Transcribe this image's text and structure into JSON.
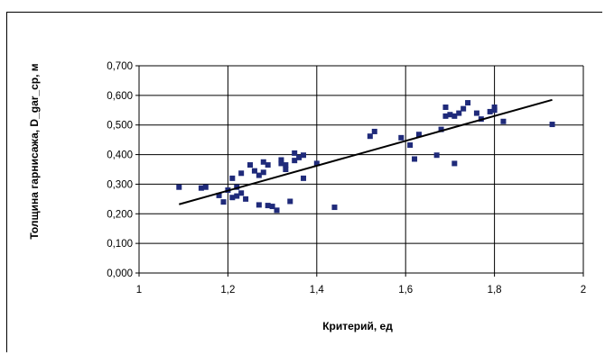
{
  "chart_data": {
    "type": "scatter",
    "xlabel": "Критерий,  ед",
    "ylabel": "Толщина гарнисажа, D_gar_ср, м",
    "xlim": [
      1,
      2
    ],
    "ylim": [
      0,
      0.7
    ],
    "x_ticks": [
      1,
      1.2,
      1.4,
      1.6,
      1.8,
      2
    ],
    "x_tick_labels": [
      "1",
      "1,2",
      "1,4",
      "1,6",
      "1,8",
      "2"
    ],
    "y_ticks": [
      0,
      0.1,
      0.2,
      0.3,
      0.4,
      0.5,
      0.6,
      0.7
    ],
    "y_tick_labels": [
      "0,000",
      "0,100",
      "0,200",
      "0,300",
      "0,400",
      "0,500",
      "0,600",
      "0,700"
    ],
    "grid": "major gridlines on both axes",
    "marker_color": "#1f2a7a",
    "trendline": {
      "type": "linear",
      "x": [
        1.09,
        1.93
      ],
      "y": [
        0.232,
        0.585
      ],
      "color": "#000000"
    },
    "points": [
      [
        1.09,
        0.29
      ],
      [
        1.14,
        0.287
      ],
      [
        1.15,
        0.29
      ],
      [
        1.18,
        0.262
      ],
      [
        1.19,
        0.24
      ],
      [
        1.2,
        0.28
      ],
      [
        1.21,
        0.32
      ],
      [
        1.21,
        0.255
      ],
      [
        1.22,
        0.29
      ],
      [
        1.22,
        0.26
      ],
      [
        1.23,
        0.337
      ],
      [
        1.23,
        0.27
      ],
      [
        1.24,
        0.25
      ],
      [
        1.25,
        0.365
      ],
      [
        1.26,
        0.345
      ],
      [
        1.27,
        0.23
      ],
      [
        1.27,
        0.33
      ],
      [
        1.28,
        0.375
      ],
      [
        1.28,
        0.34
      ],
      [
        1.29,
        0.365
      ],
      [
        1.29,
        0.228
      ],
      [
        1.3,
        0.225
      ],
      [
        1.31,
        0.212
      ],
      [
        1.32,
        0.382
      ],
      [
        1.32,
        0.37
      ],
      [
        1.33,
        0.35
      ],
      [
        1.33,
        0.365
      ],
      [
        1.34,
        0.242
      ],
      [
        1.35,
        0.38
      ],
      [
        1.35,
        0.405
      ],
      [
        1.36,
        0.39
      ],
      [
        1.37,
        0.398
      ],
      [
        1.37,
        0.32
      ],
      [
        1.4,
        0.37
      ],
      [
        1.44,
        0.222
      ],
      [
        1.52,
        0.462
      ],
      [
        1.53,
        0.478
      ],
      [
        1.59,
        0.457
      ],
      [
        1.61,
        0.432
      ],
      [
        1.62,
        0.385
      ],
      [
        1.63,
        0.468
      ],
      [
        1.67,
        0.398
      ],
      [
        1.68,
        0.485
      ],
      [
        1.69,
        0.53
      ],
      [
        1.69,
        0.56
      ],
      [
        1.7,
        0.535
      ],
      [
        1.71,
        0.53
      ],
      [
        1.71,
        0.37
      ],
      [
        1.72,
        0.54
      ],
      [
        1.73,
        0.555
      ],
      [
        1.74,
        0.575
      ],
      [
        1.76,
        0.54
      ],
      [
        1.77,
        0.52
      ],
      [
        1.79,
        0.545
      ],
      [
        1.8,
        0.55
      ],
      [
        1.8,
        0.56
      ],
      [
        1.82,
        0.512
      ],
      [
        1.93,
        0.502
      ]
    ]
  }
}
